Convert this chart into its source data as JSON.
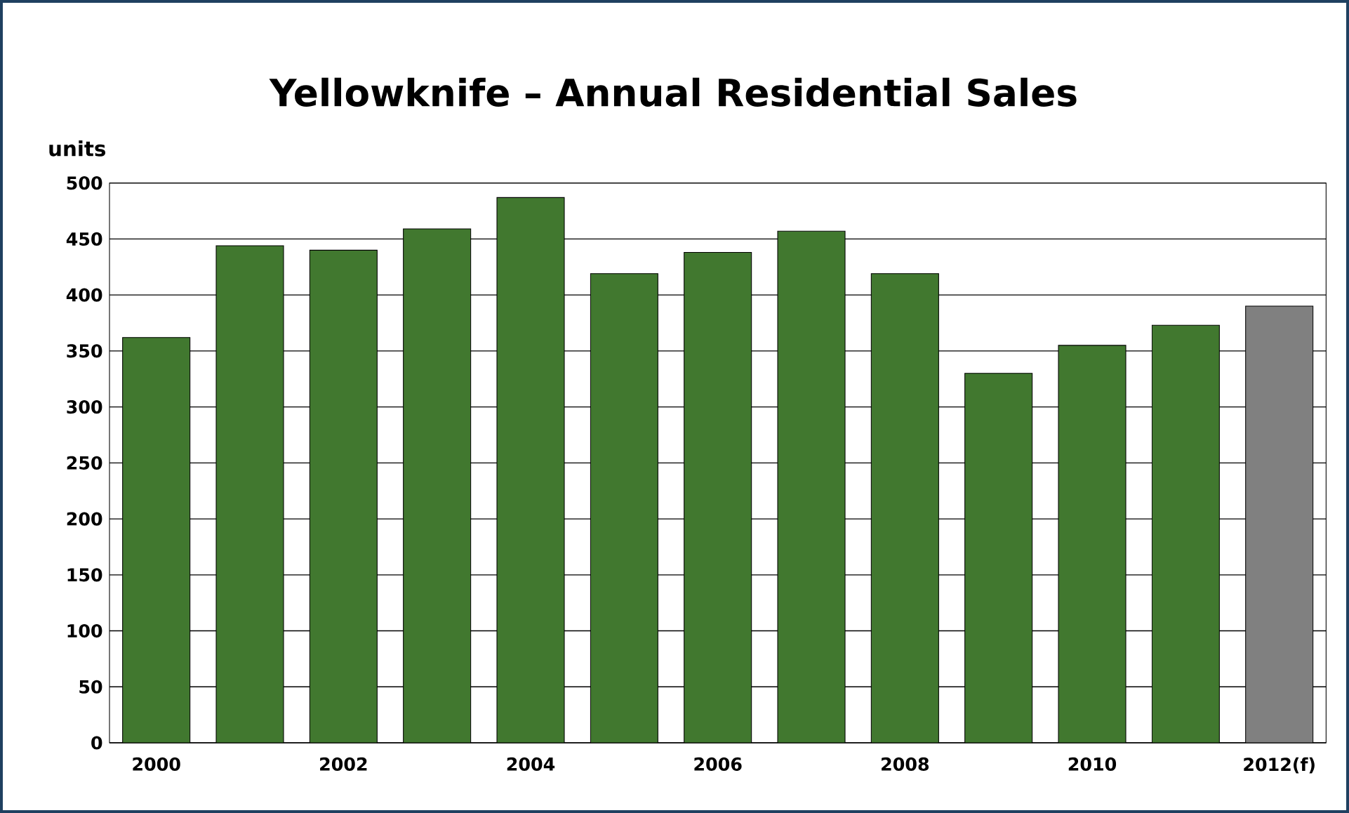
{
  "chart_data": {
    "type": "bar",
    "title": "Yellowknife – Annual Residential Sales",
    "ylabel": "units",
    "categories": [
      "2000",
      null,
      "2002",
      null,
      "2004",
      null,
      "2006",
      null,
      "2008",
      null,
      "2010",
      null,
      "2012(f)"
    ],
    "values": [
      362,
      444,
      440,
      459,
      487,
      419,
      438,
      457,
      419,
      330,
      355,
      373,
      390
    ],
    "colors": [
      "#41782f",
      "#41782f",
      "#41782f",
      "#41782f",
      "#41782f",
      "#41782f",
      "#41782f",
      "#41782f",
      "#41782f",
      "#41782f",
      "#41782f",
      "#41782f",
      "#808080"
    ],
    "ylim": [
      0,
      500
    ],
    "yticks": [
      0,
      50,
      100,
      150,
      200,
      250,
      300,
      350,
      400,
      450,
      500
    ],
    "grid": "y"
  }
}
